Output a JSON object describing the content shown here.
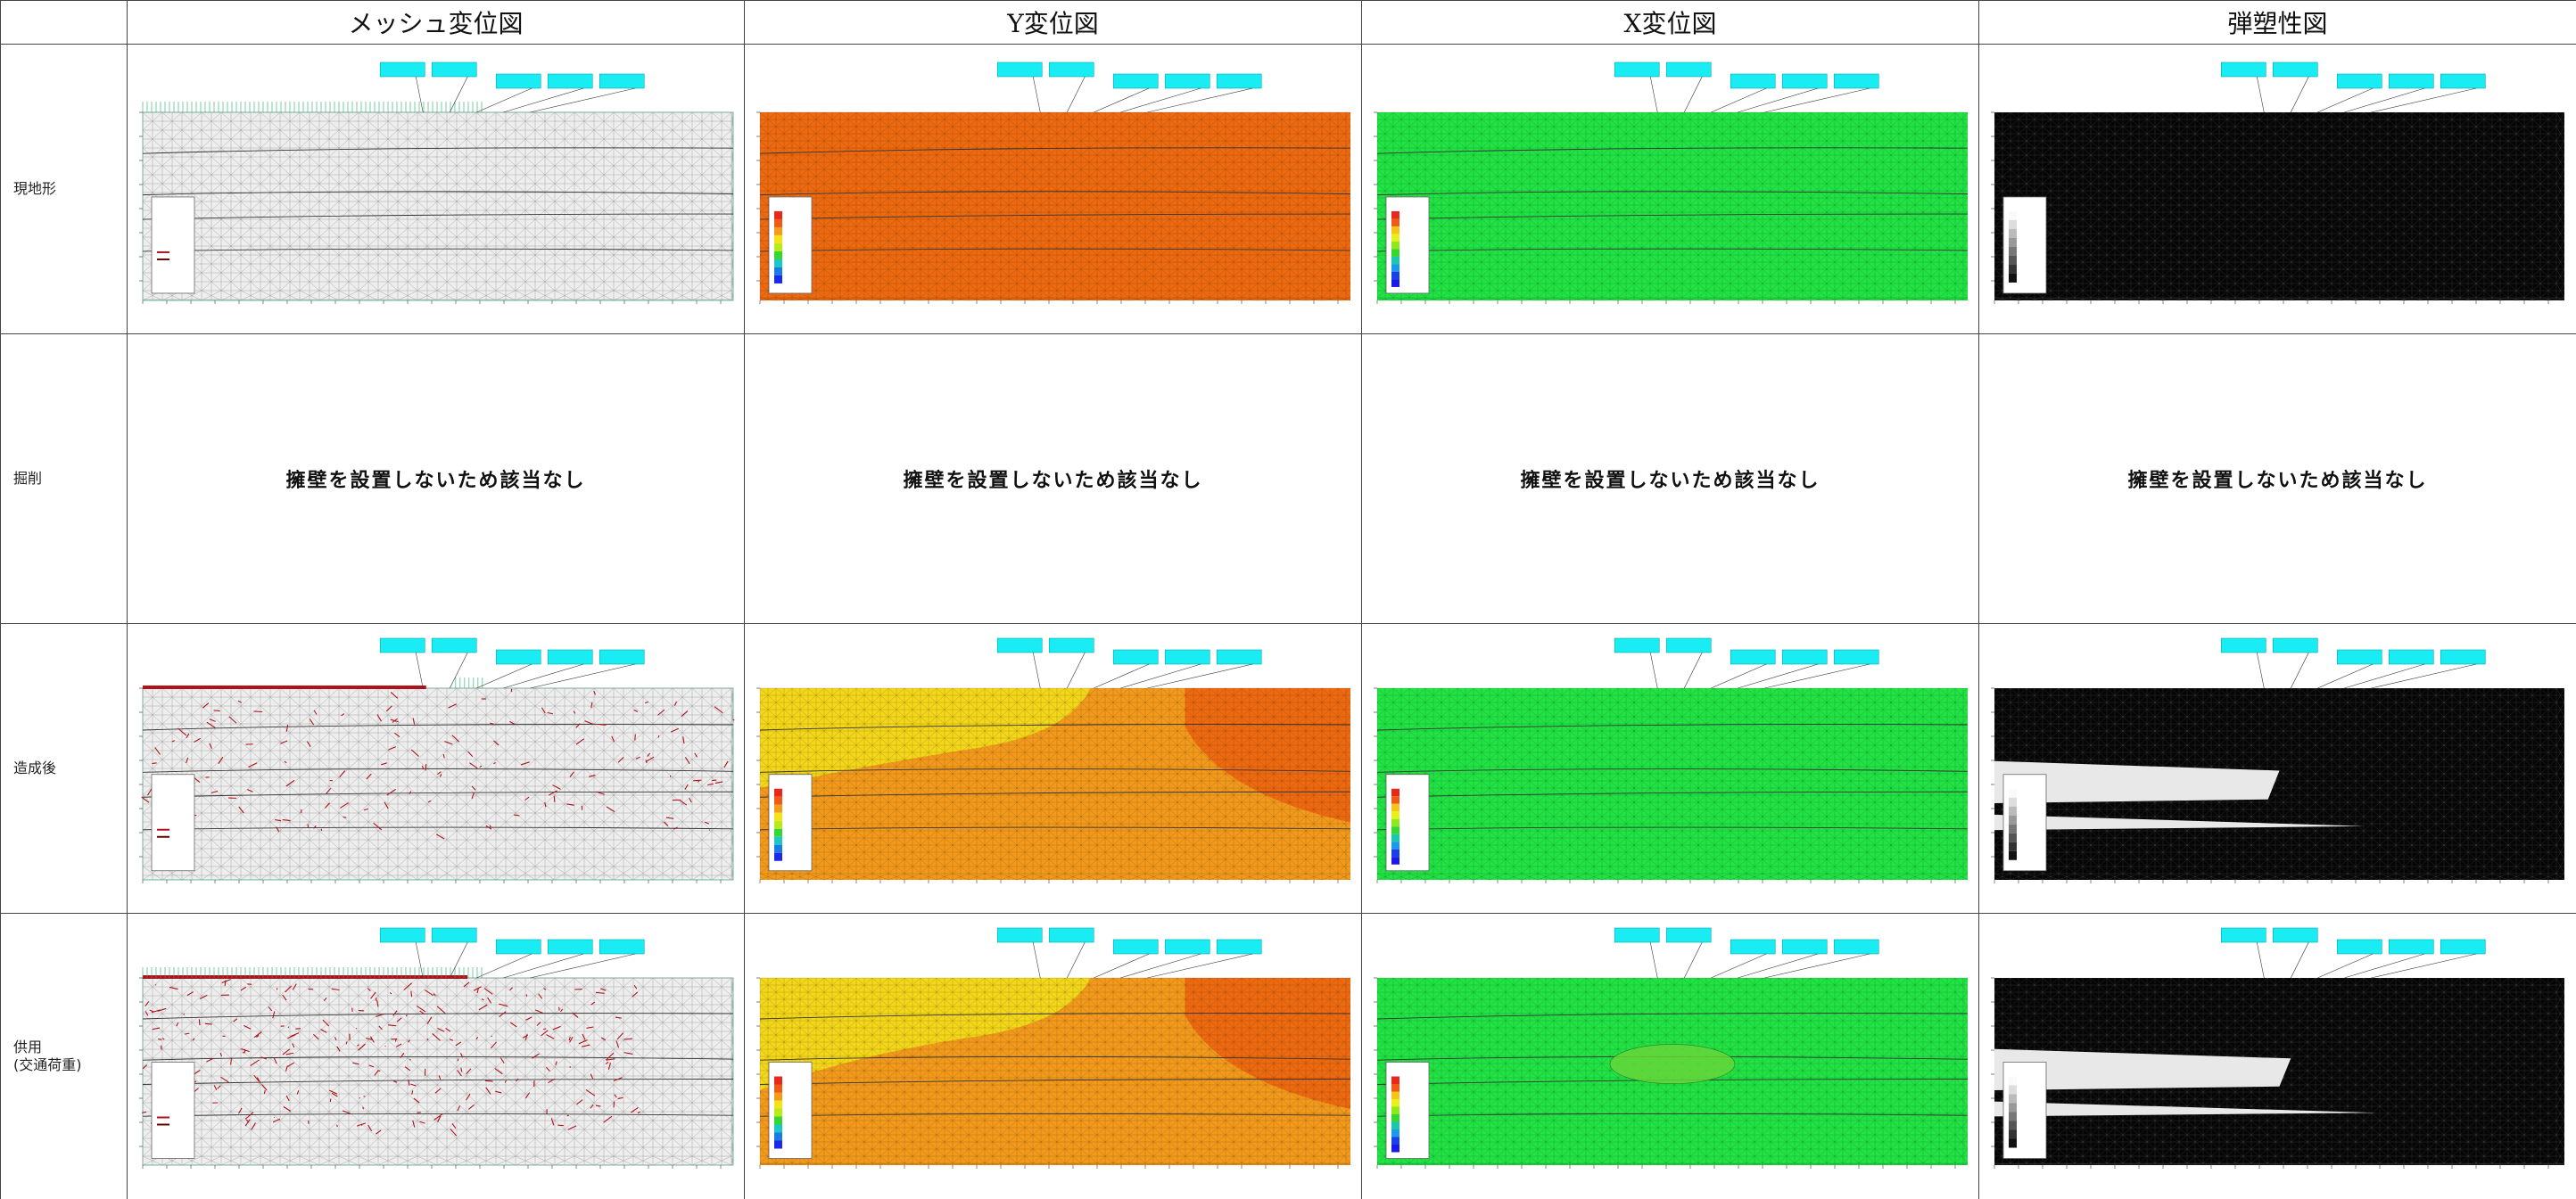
{
  "table": {
    "columns": [
      "メッシュ変位図",
      "Y変位図",
      "X変位図",
      "弾塑性図"
    ],
    "rows": [
      {
        "label": "現地形",
        "kind": "plot"
      },
      {
        "label": "掘削",
        "kind": "na",
        "text": "擁壁を設置しないため該当なし"
      },
      {
        "label": "造成後",
        "kind": "plot"
      },
      {
        "label": "供用\n(交通荷重)",
        "kind": "plot"
      }
    ]
  },
  "colors": {
    "mesh_bg": "#eeeeee",
    "mesh_line": "#9a9a9a",
    "plastic_red": "#b0121b",
    "y_orange": "#ee6a11",
    "y_amber": "#f29a1c",
    "y_yellow": "#f2e21a",
    "x_green": "#22e245",
    "elastic_black": "#050505",
    "elastic_white": "#e8e8e8",
    "callout_cyan": "#19ecf2"
  },
  "icons": [
    "mesh-diagram",
    "y-displacement-contour",
    "x-displacement-contour",
    "elastoplastic-map"
  ]
}
